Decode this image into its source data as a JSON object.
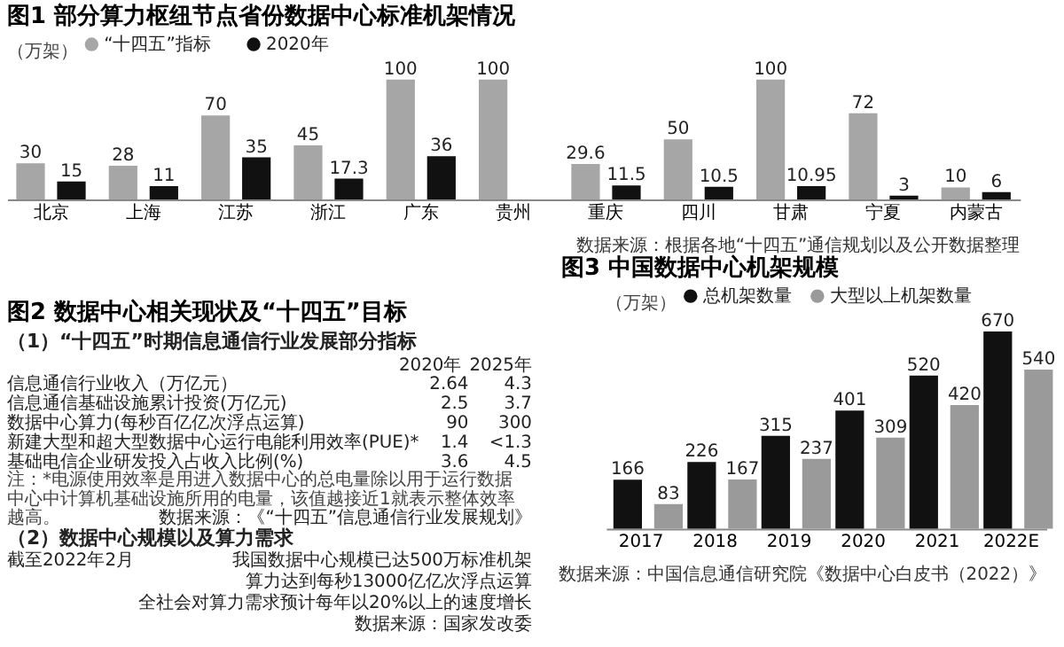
{
  "chart_data": [
    {
      "type": "bar",
      "title": "图1  部分算力枢纽节点省份数据中心标准机架情况",
      "ylabel": "（万架）",
      "legend": "top left",
      "data_labels": true,
      "categories": [
        "北京",
        "上海",
        "江苏",
        "浙江",
        "广东",
        "贵州",
        "重庆",
        "四川",
        "甘肃",
        "宁夏",
        "内蒙古"
      ],
      "series": [
        {
          "name": "“十四五”指标",
          "color": "#a6a6a6",
          "values": [
            30,
            28,
            70,
            45,
            100,
            100,
            29.6,
            50,
            100,
            72,
            10
          ]
        },
        {
          "name": "2020年",
          "color": "#111111",
          "values": [
            15,
            11,
            35,
            17.3,
            36,
            null,
            11.5,
            10.5,
            10.95,
            3,
            6
          ]
        }
      ],
      "annotations": [
        "数据来源：根据各地“十四五”通信规划以及公开数据整理"
      ]
    },
    {
      "type": "other",
      "title": "图2 数据中心相关现状及“十四五”目标",
      "annotations": [
        "（1）“十四五”时期信息通信行业发展部分指标",
        "2020年",
        "2025年",
        "信息通信行业收入（万亿元）",
        "2.64",
        "4.3",
        "信息通信基础设施累计投资(万亿元)",
        "2.5",
        "3.7",
        "数据中心算力(每秒百亿亿次浮点运算)",
        "90",
        "300",
        "新建大型和超大型数据中心运行电能利用效率(PUE)*",
        "1.4",
        "<1.3",
        "基础电信企业研发投入占收入比例(%)",
        "3.6",
        "4.5",
        "注：*电源使用效率是用进入数据中心的总电量除以用于运行数据中心中计算机基础设施所用的电量，该值越接近1就表示整体效率越高。",
        "数据来源：《“十四五”信息通信行业发展规划》",
        "（2）数据中心规模以及算力需求",
        "截至2022年2月",
        "我国数据中心规模已达500万标准机架",
        "算力达到每秒13000亿亿次浮点运算",
        "全社会对算力需求预计每年以20%以上的速度增长",
        "数据来源：国家发改委"
      ]
    },
    {
      "type": "bar",
      "title": "图3 中国数据中心机架规模",
      "ylabel": "（万架）",
      "legend": "top left",
      "data_labels": true,
      "categories": [
        "2017",
        "2018",
        "2019",
        "2020",
        "2021",
        "2022E"
      ],
      "series": [
        {
          "name": "总机架数量",
          "color": "#111111",
          "values": [
            166,
            226,
            315,
            401,
            520,
            670
          ]
        },
        {
          "name": "大型以上机架数量",
          "color": "#9a9a9a",
          "values": [
            83,
            167,
            237,
            309,
            420,
            540
          ]
        }
      ],
      "annotations": [
        "数据来源：中国信息通信研究院《数据中心白皮书（2022）》"
      ]
    }
  ]
}
